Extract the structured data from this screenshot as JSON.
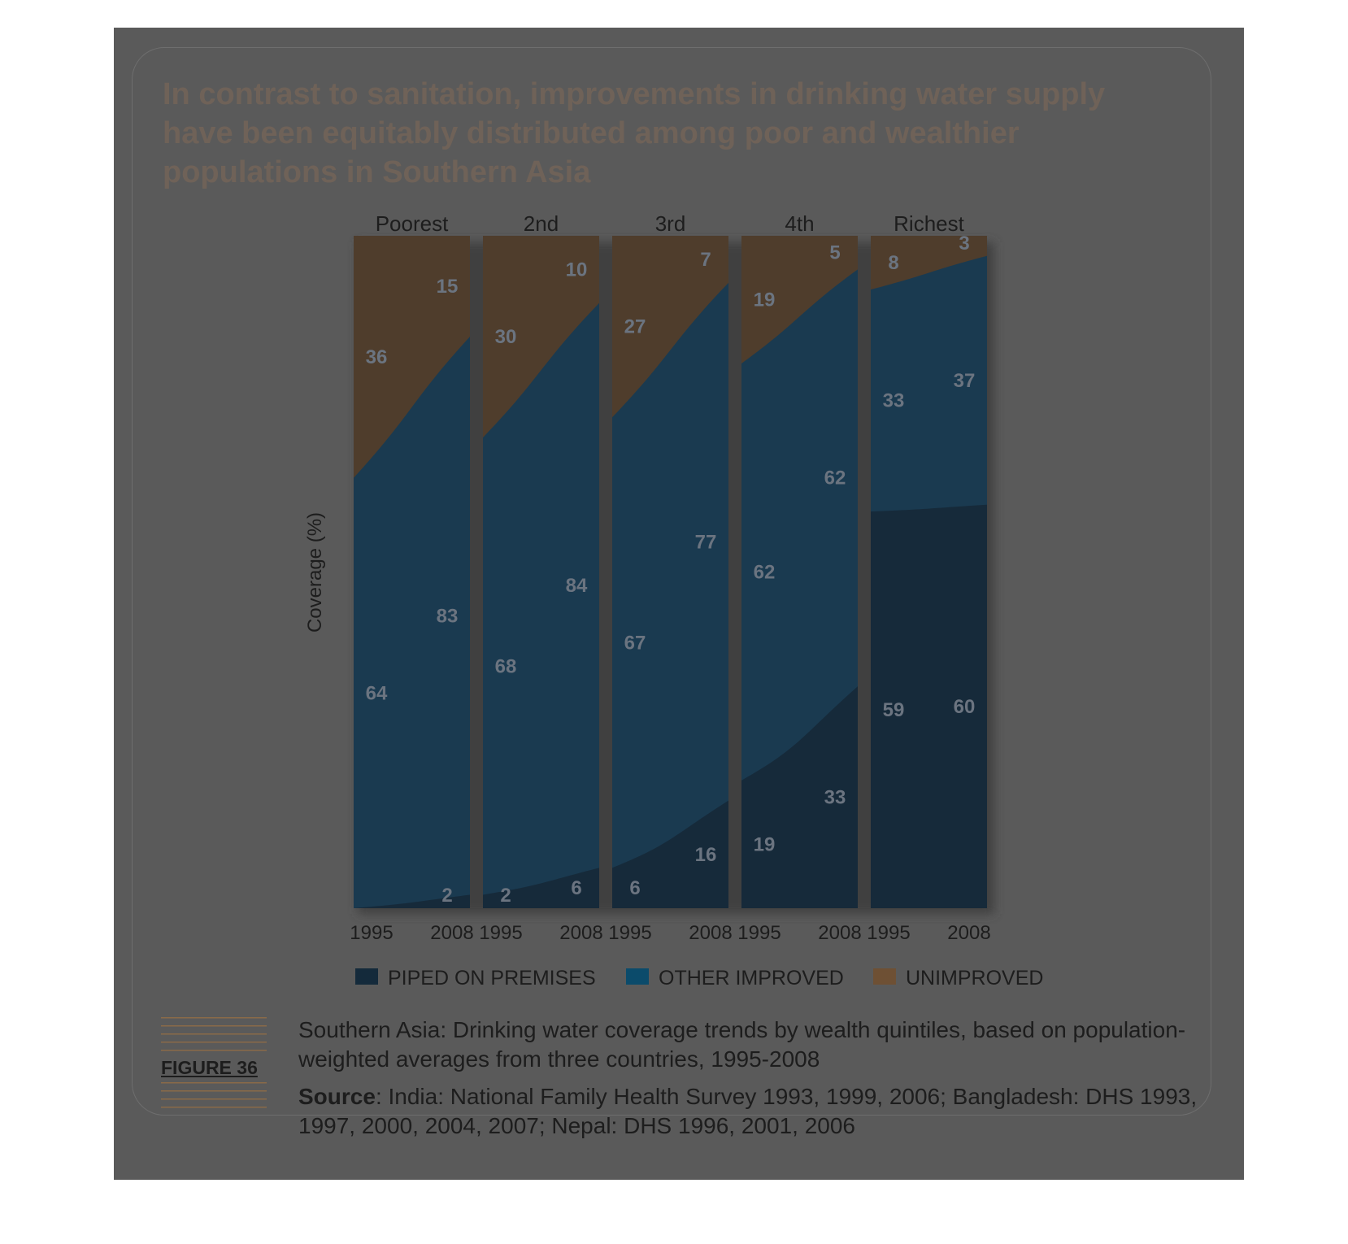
{
  "title": "In contrast to sanitation, improvements in drinking water supply have been equitably distributed among poor and wealthier populations in Southern Asia",
  "figure_label": "FIGURE 36",
  "caption": "Southern Asia: Drinking water coverage trends by wealth quintiles, based on population-weighted averages from three countries, 1995-2008",
  "source_label": "Source",
  "source_text": ": India: National Family Health Survey 1993, 1999, 2006; Bangladesh: DHS 1993, 1997, 2000, 2004, 2007; Nepal: DHS 1996, 2001, 2006",
  "colors": {
    "background": "#5a5a5a",
    "piped": "#162a3a",
    "other_improved": "#1a3a50",
    "unimproved": "#4f3d2c",
    "legend_piped": "#142a3b",
    "legend_other": "#0b4b6b",
    "legend_unimproved": "#6e5034",
    "label_text": "#6b7480"
  },
  "chart_data": {
    "type": "area",
    "ylabel": "Coverage (%)",
    "ylim": [
      0,
      100
    ],
    "x": [
      "1995",
      "2008"
    ],
    "panels": [
      {
        "name": "Poorest",
        "x": [
          "1995",
          "2008"
        ],
        "piped": [
          0,
          2
        ],
        "other_improved": [
          64,
          83
        ],
        "unimproved": [
          36,
          15
        ]
      },
      {
        "name": "2nd",
        "x": [
          "1995",
          "2008"
        ],
        "piped": [
          2,
          6
        ],
        "other_improved": [
          68,
          84
        ],
        "unimproved": [
          30,
          10
        ]
      },
      {
        "name": "3rd",
        "x": [
          "1995",
          "2008"
        ],
        "piped": [
          6,
          16
        ],
        "other_improved": [
          67,
          77
        ],
        "unimproved": [
          27,
          7
        ]
      },
      {
        "name": "4th",
        "x": [
          "1995",
          "2008"
        ],
        "piped": [
          19,
          33
        ],
        "other_improved": [
          62,
          62
        ],
        "unimproved": [
          19,
          5
        ]
      },
      {
        "name": "Richest",
        "x": [
          "1995",
          "2008"
        ],
        "piped": [
          59,
          60
        ],
        "other_improved": [
          33,
          37
        ],
        "unimproved": [
          8,
          3
        ]
      }
    ],
    "series": [
      {
        "name": "PIPED ON PREMISES",
        "key": "piped"
      },
      {
        "name": "OTHER IMPROVED",
        "key": "other_improved"
      },
      {
        "name": "UNIMPROVED",
        "key": "unimproved"
      }
    ],
    "legend": "bottom",
    "grid": false
  }
}
